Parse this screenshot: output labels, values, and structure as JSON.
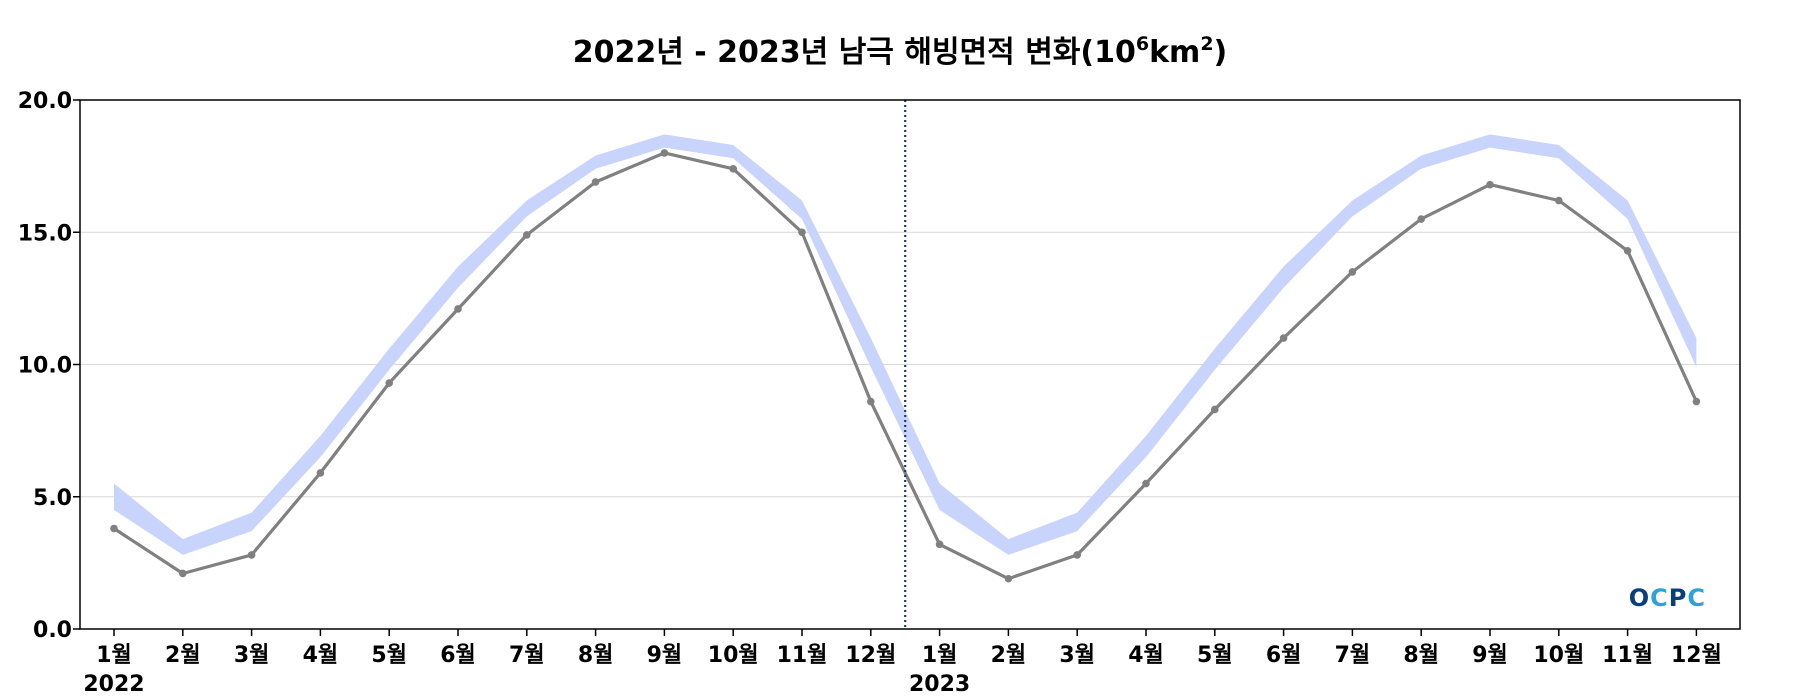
{
  "colors": {
    "band": "#c9d4fd",
    "line": "#808080",
    "marker": "#808080",
    "divider": "#1f3a73",
    "grid": "#d9d9d9",
    "axis": "#000000",
    "logo_dark": "#0a3f7e",
    "logo_light": "#2aa3d6"
  },
  "logo": {
    "text": "OCPC"
  },
  "chart_data": {
    "type": "line",
    "title_parts": {
      "main": "2022년 - 2023년 남극 해빙면적 변화(10",
      "sup1": "6",
      "mid": "km",
      "sup2": "2",
      "end": ")"
    },
    "xlabel": "",
    "ylabel": "",
    "ylim": [
      0,
      20
    ],
    "yticks": [
      0,
      5,
      10,
      15,
      20
    ],
    "ytick_labels": [
      "0.0",
      "5.0",
      "10.0",
      "15.0",
      "20.0"
    ],
    "grid": "horizontal",
    "categories": [
      "1월",
      "2월",
      "3월",
      "4월",
      "5월",
      "6월",
      "7월",
      "8월",
      "9월",
      "10월",
      "11월",
      "12월",
      "1월",
      "2월",
      "3월",
      "4월",
      "5월",
      "6월",
      "7월",
      "8월",
      "9월",
      "10월",
      "11월",
      "12월"
    ],
    "year_labels": [
      {
        "index": 0,
        "label": "2022"
      },
      {
        "index": 12,
        "label": "2023"
      }
    ],
    "divider_after_index": 11,
    "band": {
      "lower": [
        4.5,
        2.8,
        3.7,
        6.5,
        9.8,
        12.9,
        15.6,
        17.4,
        18.2,
        17.8,
        15.5,
        9.9,
        4.5,
        2.8,
        3.7,
        6.5,
        9.8,
        12.9,
        15.6,
        17.4,
        18.2,
        17.8,
        15.5,
        9.9
      ],
      "upper": [
        5.5,
        3.4,
        4.4,
        7.3,
        10.6,
        13.7,
        16.2,
        17.9,
        18.7,
        18.3,
        16.2,
        11.0,
        5.5,
        3.4,
        4.4,
        7.3,
        10.6,
        13.7,
        16.2,
        17.9,
        18.7,
        18.3,
        16.2,
        11.0
      ]
    },
    "series": [
      {
        "values": [
          3.8,
          2.1,
          2.8,
          5.9,
          9.3,
          12.1,
          14.9,
          16.9,
          18.0,
          17.4,
          15.0,
          8.6,
          3.2,
          1.9,
          2.8,
          5.5,
          8.3,
          11.0,
          13.5,
          15.5,
          16.8,
          16.2,
          14.3,
          8.6
        ]
      }
    ]
  }
}
